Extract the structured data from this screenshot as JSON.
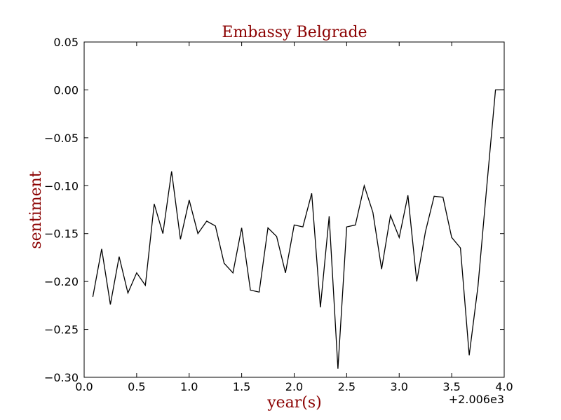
{
  "chart_data": {
    "type": "line",
    "title": "Embassy Belgrade",
    "xlabel": "year(s)",
    "ylabel": "sentiment",
    "x_offset_label": "+2.006e3",
    "xlim": [
      0.0,
      4.0
    ],
    "ylim": [
      -0.3,
      0.05
    ],
    "xticks": [
      "0.0",
      "0.5",
      "1.0",
      "1.5",
      "2.0",
      "2.5",
      "3.0",
      "3.5",
      "4.0"
    ],
    "yticks": [
      "0.05",
      "0.00",
      "−0.05",
      "−0.10",
      "−0.15",
      "−0.20",
      "−0.25",
      "−0.30"
    ],
    "grid": false,
    "colors": {
      "line": "#000000",
      "title": "#8b0000",
      "labels": "#8b0000"
    },
    "series": [
      {
        "x": [
          0.083,
          0.167,
          0.25,
          0.333,
          0.417,
          0.5,
          0.583,
          0.667,
          0.75,
          0.833,
          0.917,
          1.0,
          1.083,
          1.167,
          1.25,
          1.333,
          1.417,
          1.5,
          1.583,
          1.667,
          1.75,
          1.833,
          1.917,
          2.0,
          2.083,
          2.167,
          2.25,
          2.333,
          2.417,
          2.5,
          2.583,
          2.667,
          2.75,
          2.833,
          2.917,
          3.0,
          3.083,
          3.167,
          3.25,
          3.333,
          3.417,
          3.5,
          3.583,
          3.667,
          3.75,
          3.833,
          3.917,
          4.0
        ],
        "y": [
          -0.216,
          -0.166,
          -0.224,
          -0.174,
          -0.212,
          -0.191,
          -0.204,
          -0.119,
          -0.15,
          -0.085,
          -0.156,
          -0.115,
          -0.15,
          -0.137,
          -0.142,
          -0.181,
          -0.191,
          -0.144,
          -0.209,
          -0.211,
          -0.144,
          -0.153,
          -0.191,
          -0.141,
          -0.143,
          -0.108,
          -0.227,
          -0.132,
          -0.291,
          -0.143,
          -0.141,
          -0.1,
          -0.128,
          -0.187,
          -0.131,
          -0.154,
          -0.11,
          -0.2,
          -0.148,
          -0.111,
          -0.112,
          -0.154,
          -0.165,
          -0.277,
          -0.205,
          -0.102,
          0.0,
          0.0
        ]
      }
    ]
  }
}
